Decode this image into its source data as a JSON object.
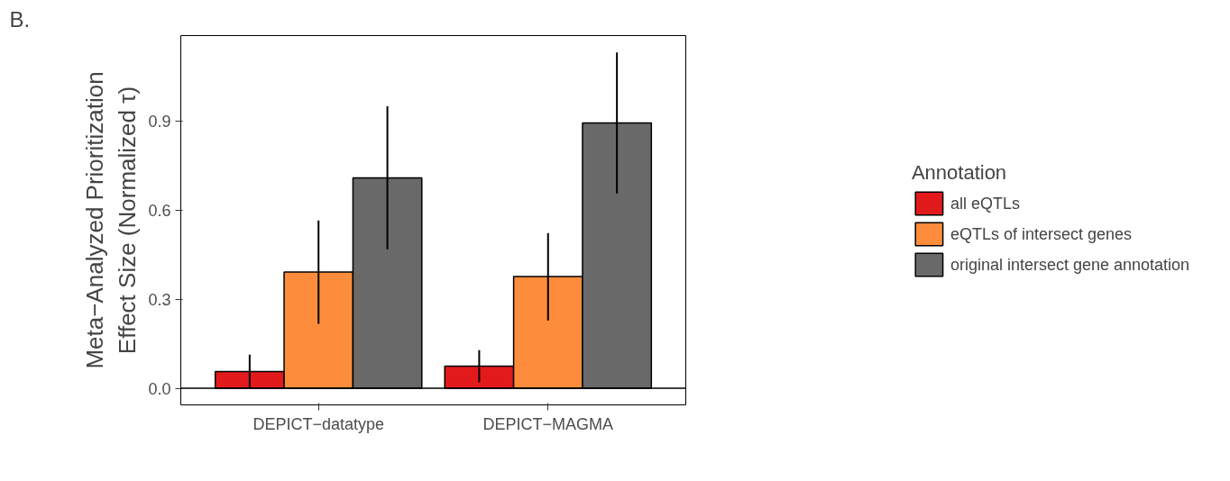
{
  "chart_data": {
    "type": "bar",
    "ylabel": "Meta−Analyzed Prioritization\nEffect Size (Normalized τ)",
    "legend_title": "Annotation",
    "annotations": [
      "B."
    ],
    "categories": [
      "DEPICT−datatype",
      "DEPICT−MAGMA"
    ],
    "series": [
      {
        "name": "all eQTLs",
        "color": "#e31a1c",
        "values": [
          0.056,
          0.074
        ],
        "errors": [
          [
            0.0,
            0.113
          ],
          [
            0.02,
            0.128
          ]
        ]
      },
      {
        "name": "eQTLs of intersect genes",
        "color": "#fd8d3c",
        "values": [
          0.391,
          0.376
        ],
        "errors": [
          [
            0.217,
            0.565
          ],
          [
            0.228,
            0.522
          ]
        ]
      },
      {
        "name": "original intersect gene annotation",
        "color": "#696969",
        "values": [
          0.708,
          0.893
        ],
        "errors": [
          [
            0.468,
            0.949
          ],
          [
            0.655,
            1.13
          ]
        ]
      }
    ],
    "ylim": [
      -0.056,
      1.187
    ],
    "yticks": [
      {
        "value": 0,
        "label": "0.0"
      },
      {
        "value": 0.3,
        "label": "0.3"
      },
      {
        "value": 0.6,
        "label": "0.6"
      },
      {
        "value": 0.9,
        "label": "0.9"
      }
    ],
    "ref_lines": [
      {
        "axis": "y",
        "value": 0,
        "color": "#000000"
      }
    ],
    "grid": false,
    "legend": "right"
  }
}
